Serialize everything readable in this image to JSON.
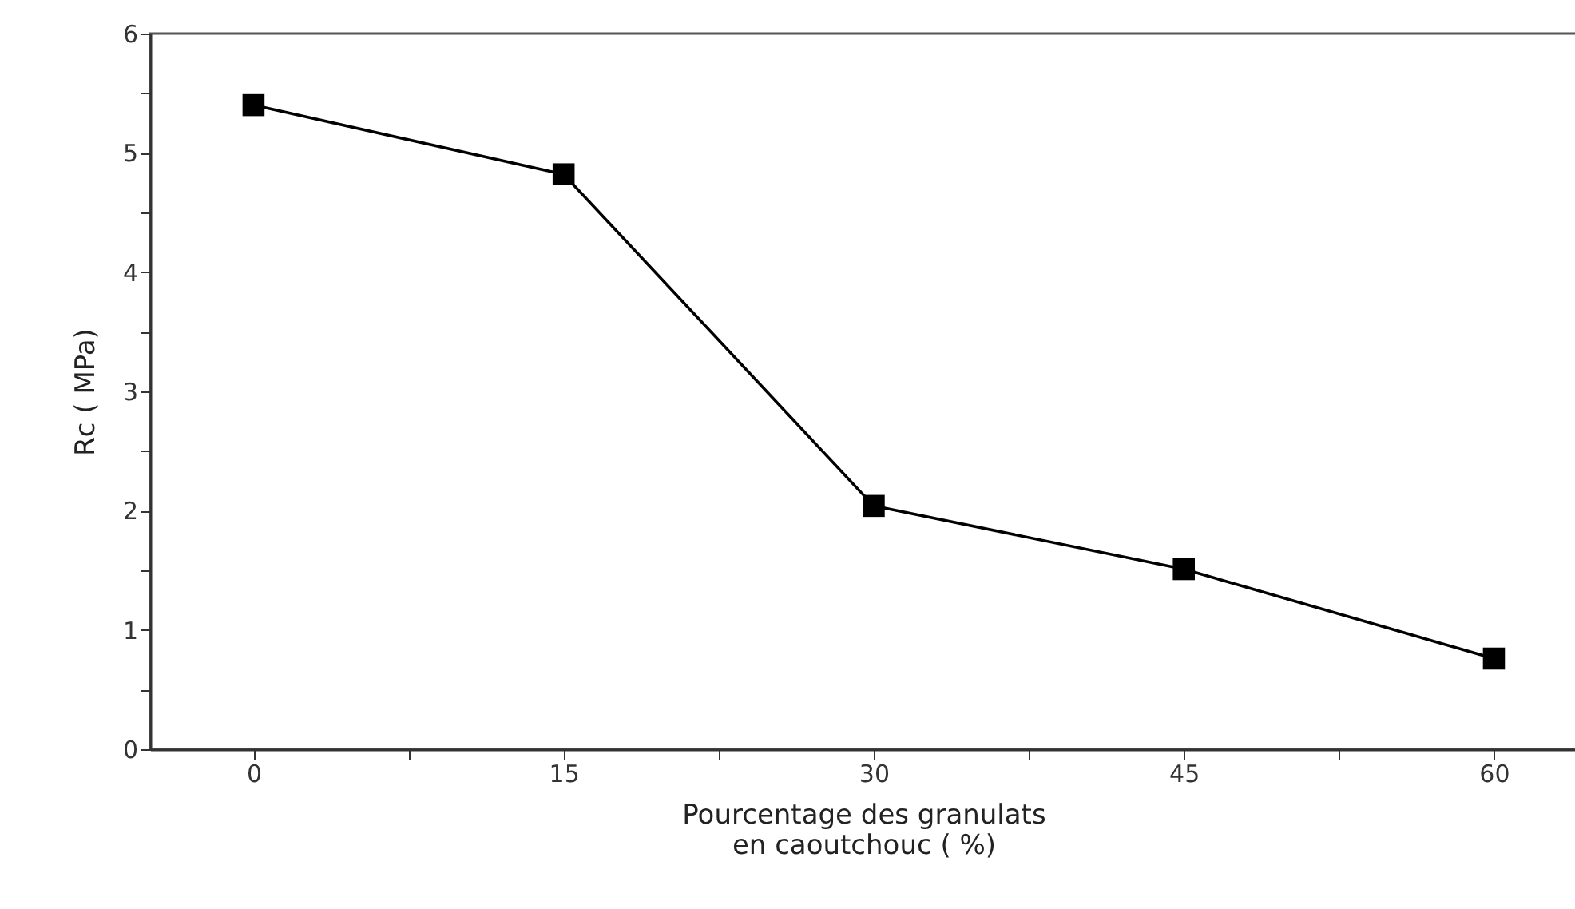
{
  "chart_data": {
    "type": "line",
    "xlabel": "Pourcentage des granulats\nen caoutchouc ( %)",
    "ylabel": "Rc ( MPa)",
    "x": [
      0,
      15,
      30,
      45,
      60
    ],
    "series": [
      {
        "color": "#000000",
        "values": [
          5.4,
          4.82,
          2.04,
          1.51,
          0.76
        ]
      }
    ],
    "xlim": [
      -5,
      64
    ],
    "xticks": [
      0,
      {
        "value": 7.5,
        "label": null
      },
      15,
      {
        "value": 22.5,
        "label": null
      },
      30,
      {
        "value": 37.5,
        "label": null
      },
      45,
      {
        "value": 52.5,
        "label": null
      },
      60
    ],
    "ylim": [
      0,
      6
    ],
    "yticks": [
      0,
      {
        "value": 0.5,
        "label": null
      },
      1,
      {
        "value": 1.5,
        "label": null
      },
      2,
      {
        "value": 2.5,
        "label": null
      },
      3,
      {
        "value": 3.5,
        "label": null
      },
      4,
      {
        "value": 4.5,
        "label": null
      },
      5,
      {
        "value": 5.5,
        "label": null
      },
      6
    ],
    "marker": "square",
    "line_style": "solid",
    "grid": false
  }
}
